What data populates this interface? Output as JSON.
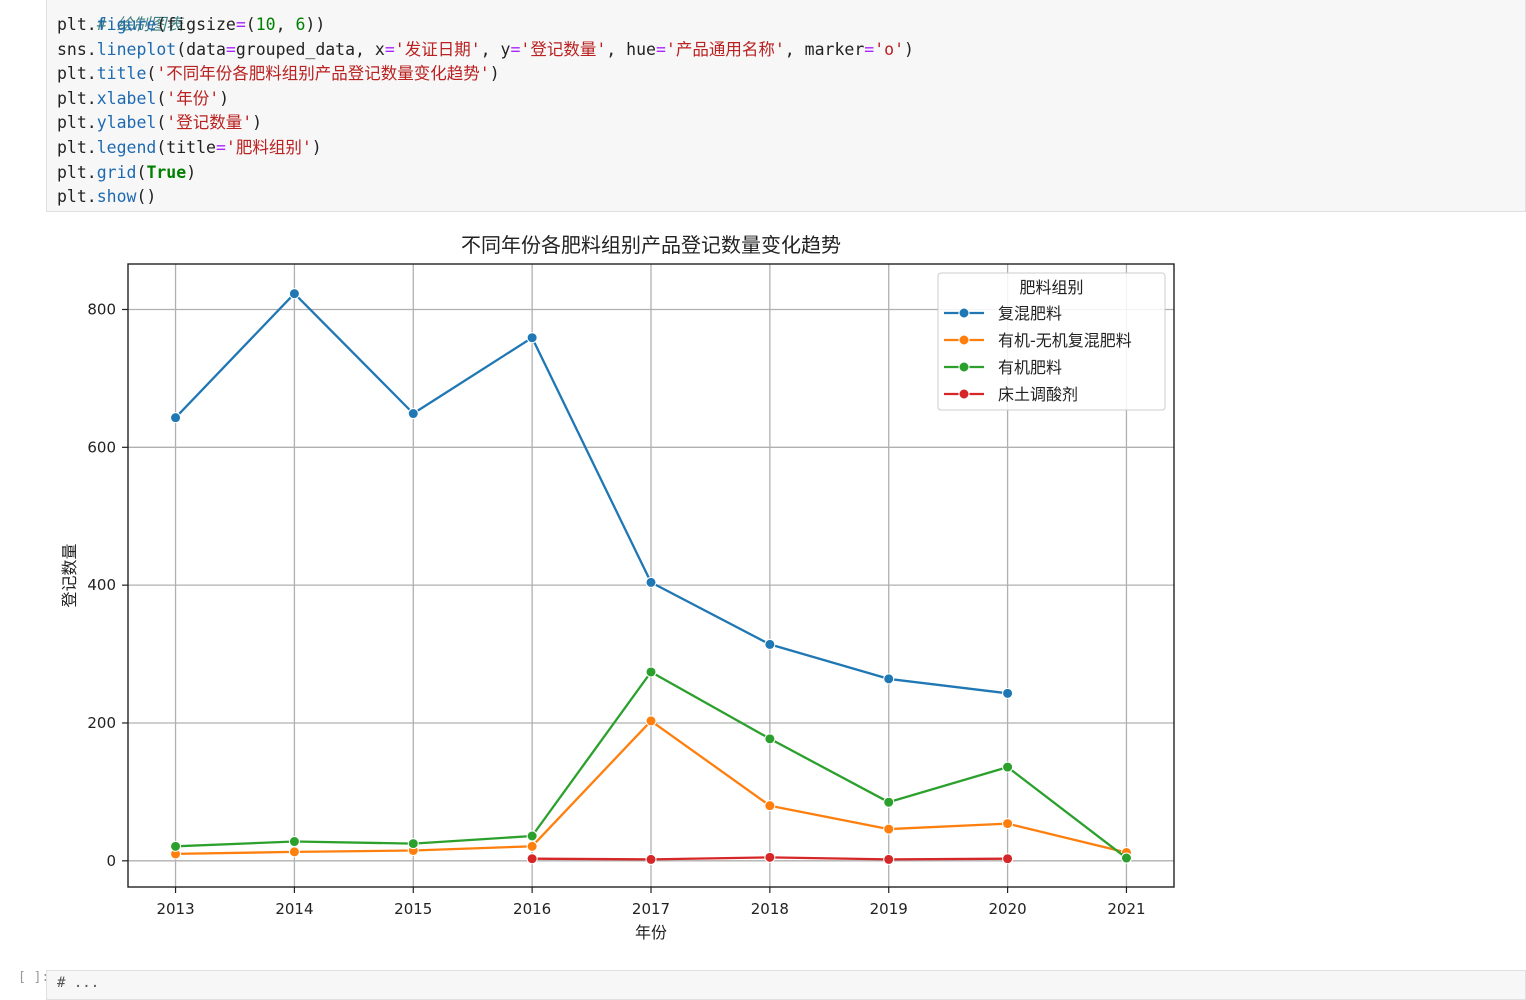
{
  "code_cell": {
    "comment": "# 绘制图表",
    "lines": [
      [
        [
          "plt.",
          ""
        ],
        [
          "figure",
          "attr"
        ],
        [
          "(figsize",
          ""
        ],
        [
          "=",
          "op"
        ],
        [
          "(",
          ""
        ],
        [
          "10",
          "num"
        ],
        [
          ", ",
          ""
        ],
        [
          "6",
          "num"
        ],
        [
          "))",
          ""
        ]
      ],
      [
        [
          "sns.",
          ""
        ],
        [
          "lineplot",
          "attr"
        ],
        [
          "(data",
          ""
        ],
        [
          "=",
          "op"
        ],
        [
          "grouped_data, x",
          ""
        ],
        [
          "=",
          "op"
        ],
        [
          "'发证日期'",
          "str"
        ],
        [
          ", y",
          ""
        ],
        [
          "=",
          "op"
        ],
        [
          "'登记数量'",
          "str"
        ],
        [
          ", hue",
          ""
        ],
        [
          "=",
          "op"
        ],
        [
          "'产品通用名称'",
          "str"
        ],
        [
          ", marker",
          ""
        ],
        [
          "=",
          "op"
        ],
        [
          "'o'",
          "str"
        ],
        [
          ")",
          ""
        ]
      ],
      [
        [
          "plt.",
          ""
        ],
        [
          "title",
          "attr"
        ],
        [
          "(",
          ""
        ],
        [
          "'不同年份各肥料组别产品登记数量变化趋势'",
          "str"
        ],
        [
          ")",
          ""
        ]
      ],
      [
        [
          "plt.",
          ""
        ],
        [
          "xlabel",
          "attr"
        ],
        [
          "(",
          ""
        ],
        [
          "'年份'",
          "str"
        ],
        [
          ")",
          ""
        ]
      ],
      [
        [
          "plt.",
          ""
        ],
        [
          "ylabel",
          "attr"
        ],
        [
          "(",
          ""
        ],
        [
          "'登记数量'",
          "str"
        ],
        [
          ")",
          ""
        ]
      ],
      [
        [
          "plt.",
          ""
        ],
        [
          "legend",
          "attr"
        ],
        [
          "(title",
          ""
        ],
        [
          "=",
          "op"
        ],
        [
          "'肥料组别'",
          "str"
        ],
        [
          ")",
          ""
        ]
      ],
      [
        [
          "plt.",
          ""
        ],
        [
          "grid",
          "attr"
        ],
        [
          "(",
          ""
        ],
        [
          "True",
          "kw"
        ],
        [
          ")",
          ""
        ]
      ],
      [
        [
          "plt.",
          ""
        ],
        [
          "show",
          "attr"
        ],
        [
          "()",
          ""
        ]
      ]
    ]
  },
  "next_cell": {
    "prompt": "[ ]:",
    "code": "# ..."
  },
  "chart_data": {
    "type": "line",
    "title": "不同年份各肥料组别产品登记数量变化趋势",
    "xlabel": "年份",
    "ylabel": "登记数量",
    "x": [
      2013,
      2014,
      2015,
      2016,
      2017,
      2018,
      2019,
      2020,
      2021
    ],
    "xlim": [
      2012.6,
      2021.4
    ],
    "ylim": [
      -38,
      866
    ],
    "yticks": [
      0,
      200,
      400,
      600,
      800
    ],
    "grid": true,
    "legend": {
      "title": "肥料组别",
      "placement": "upper-right"
    },
    "series": [
      {
        "name": "复混肥料",
        "color": "#1f77b4",
        "points": [
          [
            2013,
            643
          ],
          [
            2014,
            823
          ],
          [
            2015,
            649
          ],
          [
            2016,
            759
          ],
          [
            2017,
            404
          ],
          [
            2018,
            314
          ],
          [
            2019,
            264
          ],
          [
            2020,
            243
          ]
        ]
      },
      {
        "name": "有机-无机复混肥料",
        "color": "#ff7f0e",
        "points": [
          [
            2013,
            10
          ],
          [
            2014,
            13
          ],
          [
            2015,
            15
          ],
          [
            2016,
            21
          ],
          [
            2017,
            203
          ],
          [
            2018,
            80
          ],
          [
            2019,
            46
          ],
          [
            2020,
            54
          ],
          [
            2021,
            12
          ]
        ]
      },
      {
        "name": "有机肥料",
        "color": "#2ca02c",
        "points": [
          [
            2013,
            21
          ],
          [
            2014,
            28
          ],
          [
            2015,
            25
          ],
          [
            2016,
            36
          ],
          [
            2017,
            274
          ],
          [
            2018,
            177
          ],
          [
            2019,
            85
          ],
          [
            2020,
            136
          ],
          [
            2021,
            4
          ]
        ]
      },
      {
        "name": "床土调酸剂",
        "color": "#d62728",
        "points": [
          [
            2016,
            3
          ],
          [
            2017,
            2
          ],
          [
            2018,
            5
          ],
          [
            2019,
            2
          ],
          [
            2020,
            3
          ]
        ]
      }
    ]
  }
}
